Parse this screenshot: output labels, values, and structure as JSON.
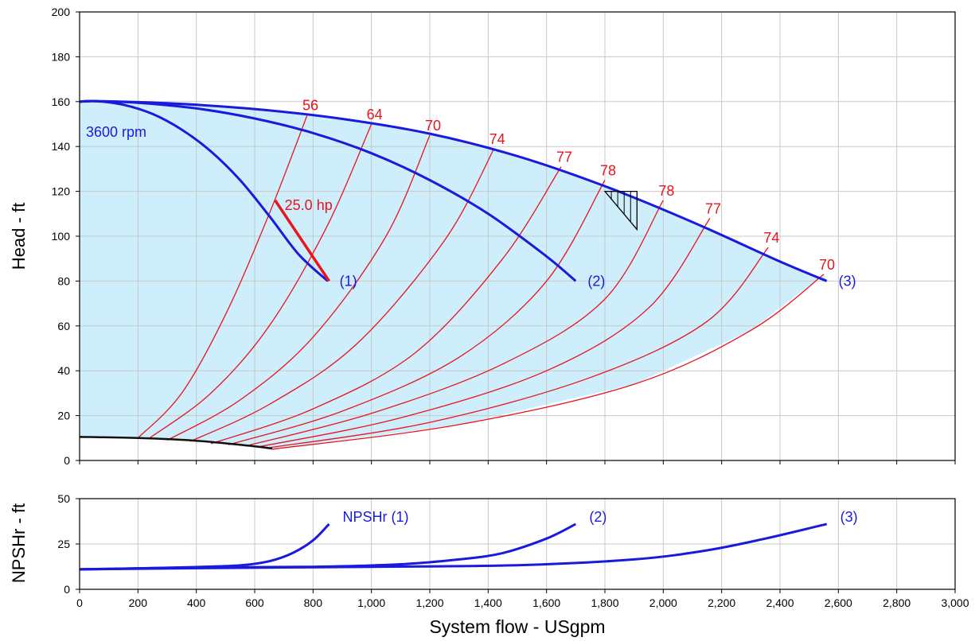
{
  "colors": {
    "curve_blue": "#1a1adc",
    "efficiency_red": "#e8141e",
    "fill_light_blue": "#cdeefa",
    "grid_gray": "#c8c8c8",
    "npsh_curve_black": "#111111"
  },
  "chart_data": [
    {
      "type": "line",
      "title": "",
      "xlabel": "",
      "ylabel": "Head - ft",
      "xlim": [
        0,
        3000
      ],
      "ylim": [
        0,
        200
      ],
      "grid": true,
      "y_ticks": [
        0,
        20,
        40,
        60,
        80,
        100,
        120,
        140,
        160,
        180,
        200
      ],
      "y_tick_labels": [
        "0",
        "20",
        "40",
        "60",
        "80",
        "100",
        "120",
        "140",
        "160",
        "180",
        "200"
      ],
      "speed_label": "3600 rpm",
      "power_label": "25.0 hp",
      "series": [
        {
          "name": "(1)",
          "x": [
            0,
            60,
            150,
            250,
            350,
            450,
            550,
            650,
            750,
            850
          ],
          "y": [
            160,
            160.2,
            158.6,
            154.5,
            147.5,
            137.8,
            125,
            109,
            92,
            80
          ]
        },
        {
          "name": "(2)",
          "x": [
            0,
            60,
            200,
            400,
            600,
            800,
            1000,
            1200,
            1400,
            1600,
            1700
          ],
          "y": [
            160,
            160.2,
            159.5,
            157,
            152.5,
            146,
            137,
            125,
            110,
            91,
            80
          ]
        },
        {
          "name": "(3)",
          "x": [
            0,
            60,
            300,
            600,
            900,
            1200,
            1500,
            1800,
            2100,
            2400,
            2560
          ],
          "y": [
            160,
            160.2,
            159.3,
            156.7,
            152.3,
            145.7,
            135.7,
            122.3,
            106.3,
            88.7,
            80
          ]
        }
      ],
      "efficiency_curves": [
        {
          "label": "56",
          "x": [
            200,
            350,
            500,
            650,
            780
          ],
          "y": [
            10,
            30,
            65,
            110,
            154
          ]
        },
        {
          "label": "64",
          "x": [
            240,
            450,
            650,
            850,
            1000
          ],
          "y": [
            10,
            30,
            60,
            105,
            150
          ]
        },
        {
          "label": "70",
          "x": [
            300,
            550,
            800,
            1050,
            1200
          ],
          "y": [
            9,
            27,
            55,
            100,
            145
          ]
        },
        {
          "label": "74",
          "x": [
            380,
            650,
            950,
            1250,
            1420
          ],
          "y": [
            8.5,
            25,
            52,
            98,
            139
          ]
        },
        {
          "label": "77",
          "x": [
            450,
            800,
            1150,
            1450,
            1650
          ],
          "y": [
            7.5,
            23,
            48,
            90,
            131
          ]
        },
        {
          "label": "78",
          "x": [
            510,
            900,
            1300,
            1600,
            1800
          ],
          "y": [
            7,
            22,
            46,
            80,
            125
          ]
        },
        {
          "label": "78",
          "x": [
            570,
            1000,
            1450,
            1800,
            2000
          ],
          "y": [
            6.5,
            21,
            43,
            72,
            116
          ]
        },
        {
          "label": "77",
          "x": [
            610,
            1100,
            1600,
            1950,
            2160
          ],
          "y": [
            6,
            19,
            40,
            68,
            108
          ]
        },
        {
          "label": "74",
          "x": [
            640,
            1200,
            1750,
            2150,
            2360
          ],
          "y": [
            5.5,
            17,
            37,
            62,
            95
          ]
        },
        {
          "label": "70",
          "x": [
            660,
            1300,
            1900,
            2300,
            2550
          ],
          "y": [
            5,
            16,
            34,
            58,
            83
          ]
        }
      ],
      "power_curve": {
        "x": [
          670,
          855
        ],
        "y": [
          116,
          80
        ]
      },
      "npsh_available_curve": {
        "x": [
          0,
          200,
          400,
          600,
          660
        ],
        "y": [
          10.5,
          10,
          8.8,
          6.3,
          5.3
        ]
      },
      "bep_marker": {
        "x": [
          1800,
          1910,
          1910
        ],
        "y": [
          120,
          120,
          103
        ]
      }
    },
    {
      "type": "line",
      "title": "",
      "xlabel": "System flow - USgpm",
      "ylabel": "NPSHr - ft",
      "xlim": [
        0,
        3000
      ],
      "ylim": [
        0,
        50
      ],
      "grid": true,
      "x_ticks": [
        0,
        200,
        400,
        600,
        800,
        1000,
        1200,
        1400,
        1600,
        1800,
        2000,
        2200,
        2400,
        2600,
        2800,
        3000
      ],
      "x_tick_labels": [
        "0",
        "200",
        "400",
        "600",
        "800",
        "1,000",
        "1,200",
        "1,400",
        "1,600",
        "1,800",
        "2,000",
        "2,200",
        "2,400",
        "2,600",
        "2,800",
        "3,000"
      ],
      "y_ticks": [
        0,
        25,
        50
      ],
      "y_tick_labels": [
        "0",
        "25",
        "50"
      ],
      "series": [
        {
          "name": "NPSHr (1)",
          "x": [
            0,
            200,
            400,
            550,
            650,
            730,
            800,
            855
          ],
          "y": [
            11,
            11.6,
            12.3,
            13.2,
            15.5,
            20,
            27,
            36
          ]
        },
        {
          "name": "(2)",
          "x": [
            0,
            400,
            800,
            1100,
            1300,
            1450,
            1600,
            1700
          ],
          "y": [
            11,
            12,
            12.4,
            13.8,
            16.5,
            20,
            28,
            36
          ]
        },
        {
          "name": "(3)",
          "x": [
            0,
            500,
            1000,
            1500,
            1900,
            2150,
            2350,
            2560
          ],
          "y": [
            11,
            11.8,
            12.4,
            13.3,
            16.5,
            21.5,
            28,
            36
          ]
        }
      ]
    }
  ]
}
